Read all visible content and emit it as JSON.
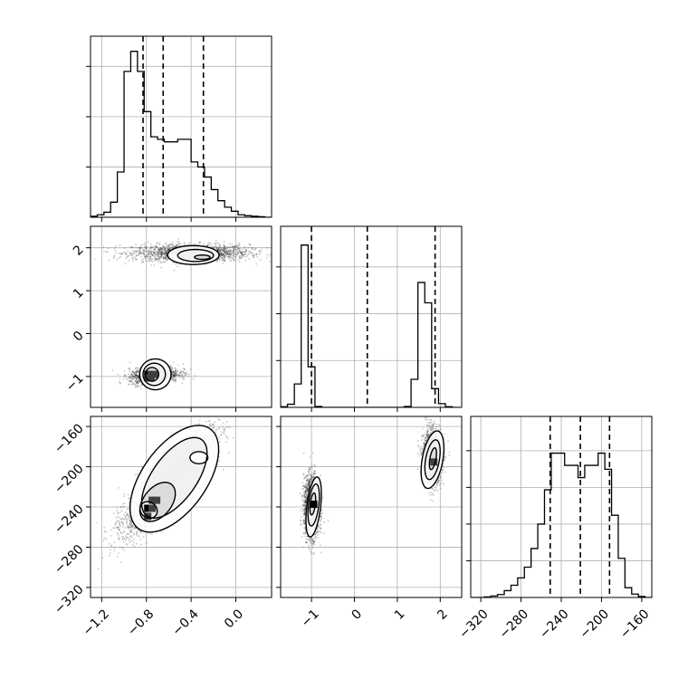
{
  "chart_data": {
    "type": "corner",
    "parameters": [
      {
        "ticks": [
          -1.2,
          -0.8,
          -0.4,
          0.0
        ],
        "tick_labels": [
          "−1.2",
          "−0.8",
          "−0.4",
          "0.0"
        ],
        "range": [
          -1.3,
          0.32
        ]
      },
      {
        "ticks": [
          -1,
          0,
          1,
          2
        ],
        "tick_labels": [
          "−1",
          "0",
          "1",
          "2"
        ],
        "range": [
          -1.72,
          2.5
        ]
      },
      {
        "ticks": [
          -320,
          -280,
          -240,
          -200,
          -160
        ],
        "tick_labels": [
          "−320",
          "−280",
          "−240",
          "−200",
          "−160"
        ],
        "range": [
          -330,
          -150
        ]
      }
    ],
    "histograms": [
      {
        "bin_edges": [
          -1.3,
          -1.24,
          -1.18,
          -1.12,
          -1.06,
          -1.0,
          -0.94,
          -0.88,
          -0.82,
          -0.76,
          -0.7,
          -0.64,
          -0.58,
          -0.52,
          -0.46,
          -0.4,
          -0.34,
          -0.28,
          -0.22,
          -0.16,
          -0.1,
          -0.04,
          0.02,
          0.08,
          0.14,
          0.2,
          0.26,
          0.32
        ],
        "counts": [
          2,
          5,
          10,
          30,
          90,
          290,
          330,
          290,
          210,
          160,
          155,
          150,
          150,
          155,
          155,
          110,
          100,
          80,
          55,
          33,
          20,
          12,
          5,
          3,
          2,
          1,
          0
        ],
        "quantiles": [
          -0.83,
          -0.65,
          -0.29
        ],
        "ymax": 360,
        "yticks": [
          100,
          200,
          300
        ]
      },
      {
        "bin_edges": [
          -1.72,
          -1.56,
          -1.4,
          -1.24,
          -1.08,
          -0.92,
          -0.76,
          -0.6,
          -0.44,
          -0.28,
          -0.12,
          0.04,
          0.2,
          0.36,
          0.52,
          0.68,
          0.84,
          1.0,
          1.16,
          1.32,
          1.48,
          1.64,
          1.8,
          1.96,
          2.12,
          2.28,
          2.44
        ],
        "counts": [
          2,
          10,
          75,
          520,
          130,
          3,
          0,
          0,
          0,
          0,
          0,
          0,
          0,
          0,
          0,
          0,
          0,
          0,
          3,
          90,
          400,
          335,
          60,
          12,
          2,
          0
        ],
        "quantiles": [
          -1.0,
          0.3,
          1.88
        ],
        "ymax": 580,
        "yticks": [
          150,
          300,
          450
        ]
      },
      {
        "bin_edges": [
          -330,
          -323.33,
          -316.67,
          -310,
          -303.33,
          -296.67,
          -290,
          -283.33,
          -276.67,
          -270,
          -263.33,
          -256.67,
          -250,
          -243.33,
          -236.67,
          -230,
          -223.33,
          -216.67,
          -210,
          -203.33,
          -196.67,
          -190,
          -183.33,
          -176.67,
          -170,
          -163.33,
          -156.67,
          -150
        ],
        "counts": [
          0,
          0,
          1,
          3,
          6,
          14,
          25,
          40,
          62,
          100,
          150,
          220,
          295,
          295,
          270,
          270,
          245,
          270,
          270,
          295,
          262,
          168,
          80,
          20,
          7,
          2,
          0
        ],
        "quantiles": [
          -251,
          -221,
          -192
        ],
        "ymax": 370,
        "yticks": [
          75,
          150,
          225,
          300
        ]
      }
    ],
    "pairs": [
      {
        "x_param": 0,
        "y_param": 1,
        "blobs": [
          {
            "cx": -0.4,
            "cy": 1.88,
            "sx": 0.26,
            "sy": 0.1,
            "rho": 0.0,
            "n": 1800
          },
          {
            "cx": -0.73,
            "cy": -0.97,
            "sx": 0.11,
            "sy": 0.1,
            "rho": 0.25,
            "n": 1300
          }
        ],
        "contours": [
          {
            "cx": -0.38,
            "cy": 1.83,
            "rx": 0.23,
            "ry": 0.22,
            "rot": 0
          },
          {
            "cx": -0.36,
            "cy": 1.82,
            "rx": 0.16,
            "ry": 0.14,
            "rot": 0
          },
          {
            "cx": -0.3,
            "cy": 1.78,
            "rx": 0.07,
            "ry": 0.05,
            "rot": 0
          },
          {
            "cx": -0.72,
            "cy": -0.95,
            "rx": 0.14,
            "ry": 0.36,
            "rot": 0
          },
          {
            "cx": -0.73,
            "cy": -0.95,
            "rx": 0.1,
            "ry": 0.26,
            "rot": 0
          },
          {
            "cx": -0.75,
            "cy": -0.95,
            "rx": 0.06,
            "ry": 0.16,
            "rot": 0
          }
        ],
        "dark_cells": [
          [
            -0.8,
            -0.92
          ],
          [
            -0.77,
            -0.92
          ],
          [
            -0.74,
            -0.92
          ],
          [
            -0.8,
            -1.0
          ],
          [
            -0.77,
            -1.0
          ]
        ]
      },
      {
        "x_param": 0,
        "y_param": 2,
        "blobs": [
          {
            "cx": -0.6,
            "cy": -215,
            "sx": 0.19,
            "sy": 24,
            "rho": 0.84,
            "n": 4200
          }
        ],
        "contours": [
          {
            "cx": -0.55,
            "cy": -212,
            "rx": 0.55,
            "ry": 32,
            "rot": -0.95
          },
          {
            "cx": -0.55,
            "cy": -211,
            "rx": 0.42,
            "ry": 22,
            "rot": -0.95
          },
          {
            "cx": -0.7,
            "cy": -235,
            "rx": 0.2,
            "ry": 14,
            "rot": -0.9
          },
          {
            "cx": -0.33,
            "cy": -191,
            "rx": 0.08,
            "ry": 6,
            "rot": 0
          },
          {
            "cx": -0.78,
            "cy": -243,
            "rx": 0.07,
            "ry": 9,
            "rot": -0.9
          }
        ],
        "dark_cells": [
          [
            -0.8,
            -240
          ],
          [
            -0.76,
            -240
          ],
          [
            -0.8,
            -248
          ],
          [
            -0.76,
            -232
          ],
          [
            -0.72,
            -232
          ]
        ]
      },
      {
        "x_param": 1,
        "y_param": 2,
        "blobs": [
          {
            "cx": -1.0,
            "cy": -240,
            "sx": 0.09,
            "sy": 15,
            "rho": 0.0,
            "n": 1800
          },
          {
            "cx": 1.82,
            "cy": -190,
            "sx": 0.11,
            "sy": 13,
            "rho": 0.0,
            "n": 1800
          }
        ],
        "contours": [
          {
            "cx": -0.95,
            "cy": -240,
            "rx": 0.16,
            "ry": 30,
            "rot": 0.12
          },
          {
            "cx": -0.95,
            "cy": -238,
            "rx": 0.12,
            "ry": 21,
            "rot": 0.12
          },
          {
            "cx": -0.97,
            "cy": -237,
            "rx": 0.06,
            "ry": 11,
            "rot": 0.12
          },
          {
            "cx": 1.82,
            "cy": -193,
            "rx": 0.24,
            "ry": 29,
            "rot": 0.18
          },
          {
            "cx": 1.82,
            "cy": -193,
            "rx": 0.16,
            "ry": 20,
            "rot": 0.18
          },
          {
            "cx": 1.83,
            "cy": -192,
            "rx": 0.07,
            "ry": 11,
            "rot": 0.18
          }
        ],
        "dark_cells": [
          [
            -0.98,
            -236
          ],
          [
            1.82,
            -194
          ]
        ]
      }
    ]
  }
}
